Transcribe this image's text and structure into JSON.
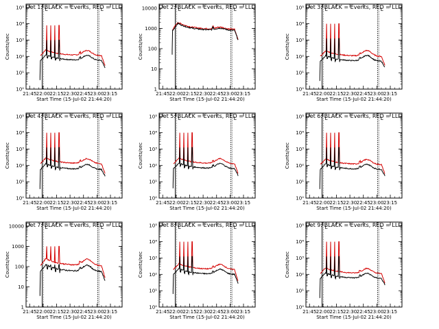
{
  "chart_data": {
    "type": "line",
    "layout": "3x3 grid",
    "shared": {
      "x_ticks": [
        "21:45",
        "22:00",
        "22:15",
        "22:30",
        "22:45",
        "23:00",
        "23:15"
      ],
      "x_tick_minutes": [
        0,
        15,
        30,
        45,
        60,
        75,
        90
      ],
      "xlim_minutes": [
        -4,
        103
      ],
      "xlabel": "Start Time (15-Jul-02 21:44:20)",
      "ylabel": "Counts/sec",
      "series": [
        {
          "name": "Events",
          "color": "#000000"
        },
        {
          "name": "LLD",
          "color": "#d40000"
        }
      ],
      "markers_minutes": [
        14,
        76
      ],
      "marker_label": "L"
    },
    "panels": [
      {
        "title": "Det 1: BLACK = Events, RED = LLD",
        "y_ticks": [
          "10⁰",
          "10¹",
          "10²",
          "10³",
          "10⁴",
          "10⁵"
        ],
        "ylim_log": [
          0,
          5.2
        ],
        "ylabel": "Counts/sec",
        "events_base": 1.75,
        "lld_base": 2.05,
        "start": 12,
        "end": 84,
        "spike_top": 3.9,
        "spike_count": 4,
        "bump": 0.3,
        "tail": 1.0
      },
      {
        "title": "Det 2: BLACK = Events, RED = LLD",
        "y_ticks": [
          "1",
          "10",
          "100",
          "1000",
          "10000"
        ],
        "ylim_log": [
          0,
          4.2
        ],
        "ylabel": "Counts/sec",
        "events_base": 2.9,
        "lld_base": 2.95,
        "start": 11,
        "end": 84,
        "spike_top": 3.15,
        "spike_count": 0,
        "bump": 0.1,
        "tail": 2.1
      },
      {
        "title": "Det 3: BLACK = Events, RED = LLD",
        "y_ticks": [
          "10⁰",
          "10¹",
          "10²",
          "10³",
          "10⁴",
          "10⁵"
        ],
        "ylim_log": [
          0,
          5.2
        ],
        "ylabel": "Counts/sec",
        "events_base": 1.7,
        "lld_base": 2.0,
        "start": 12,
        "end": 84,
        "spike_top": 4.0,
        "spike_count": 4,
        "bump": 0.35,
        "tail": 1.1
      },
      {
        "title": "Det 4: BLACK = Events, RED = LLD",
        "y_ticks": [
          "10⁰",
          "10¹",
          "10²",
          "10³",
          "10⁴",
          "10⁵"
        ],
        "ylim_log": [
          0,
          5.2
        ],
        "ylabel": "Counts/sec",
        "events_base": 1.75,
        "lld_base": 2.1,
        "start": 12,
        "end": 84,
        "spike_top": 4.0,
        "spike_count": 4,
        "bump": 0.3,
        "tail": 1.1
      },
      {
        "title": "Det 5: BLACK = Events, RED = LLD",
        "y_ticks": [
          "10⁰",
          "10¹",
          "10²",
          "10³",
          "10⁴",
          "10⁵"
        ],
        "ylim_log": [
          0,
          5.2
        ],
        "ylabel": "Counts/sec",
        "events_base": 1.8,
        "lld_base": 2.1,
        "start": 12,
        "end": 84,
        "spike_top": 4.0,
        "spike_count": 4,
        "bump": 0.3,
        "tail": 1.1
      },
      {
        "title": "Det 6: BLACK = Events, RED = LLD",
        "y_ticks": [
          "10⁰",
          "10¹",
          "10²",
          "10³",
          "10⁴",
          "10⁵"
        ],
        "ylim_log": [
          0,
          5.2
        ],
        "ylabel": "Counts/sec",
        "events_base": 1.75,
        "lld_base": 2.05,
        "start": 12,
        "end": 84,
        "spike_top": 4.0,
        "spike_count": 4,
        "bump": 0.3,
        "tail": 1.1
      },
      {
        "title": "Det 7: BLACK = Events, RED = LLD",
        "y_ticks": [
          "1",
          "10",
          "100",
          "1000",
          "10000"
        ],
        "ylim_log": [
          0,
          4.2
        ],
        "ylabel": "Counts/sec",
        "events_base": 1.75,
        "lld_base": 2.05,
        "start": 12,
        "end": 84,
        "spike_top": 3.0,
        "spike_count": 4,
        "bump": 0.3,
        "tail": 1.0
      },
      {
        "title": "Det 8: BLACK = Events, RED = LLD",
        "y_ticks": [
          "10⁰",
          "10¹",
          "10²",
          "10³",
          "10⁴",
          "10⁵"
        ],
        "ylim_log": [
          0,
          5.2
        ],
        "ylabel": "Counts/sec",
        "events_base": 2.0,
        "lld_base": 2.3,
        "start": 12,
        "end": 84,
        "spike_top": 4.0,
        "spike_count": 4,
        "bump": 0.3,
        "tail": 1.1
      },
      {
        "title": "Det 9: BLACK = Events, RED = LLD",
        "y_ticks": [
          "10⁰",
          "10¹",
          "10²",
          "10³",
          "10⁴",
          "10⁵"
        ],
        "ylim_log": [
          0,
          5.2
        ],
        "ylabel": "Counts/sec",
        "events_base": 1.75,
        "lld_base": 2.05,
        "start": 12,
        "end": 84,
        "spike_top": 4.0,
        "spike_count": 4,
        "bump": 0.3,
        "tail": 1.1
      }
    ]
  }
}
